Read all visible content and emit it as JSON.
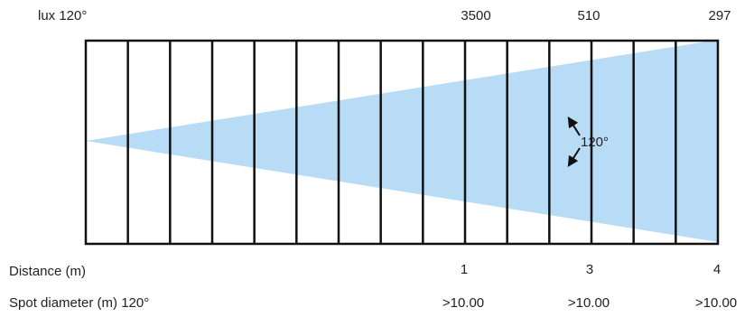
{
  "header": {
    "lux_label": "lux 120°"
  },
  "beam_angle_label": "120°",
  "row_labels": {
    "distance": "Distance (m)",
    "spot_diameter": "Spot diameter (m) 120°"
  },
  "columns": [
    {
      "lux": 3500,
      "distance": 1,
      "spot_diameter": ">10.00"
    },
    {
      "lux": 510,
      "distance": 3,
      "spot_diameter": ">10.00"
    },
    {
      "lux": 297,
      "distance": 4,
      "spot_diameter": ">10.00"
    }
  ]
}
